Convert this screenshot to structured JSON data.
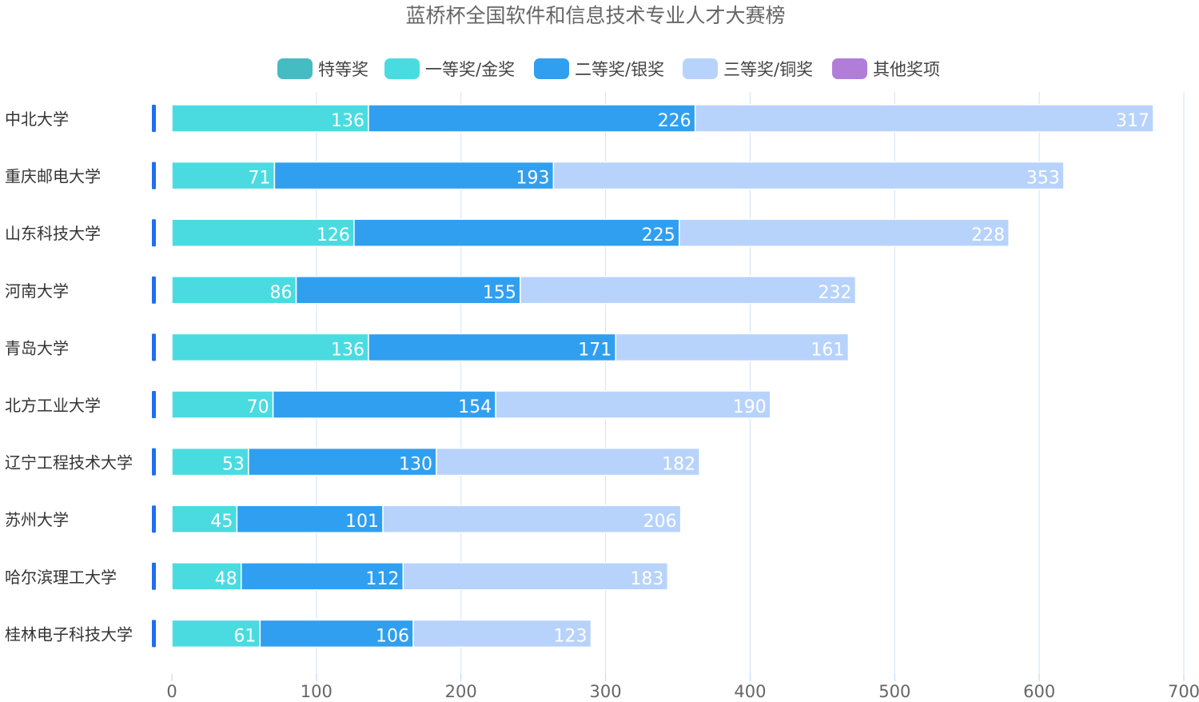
{
  "chart_data": {
    "type": "bar",
    "orientation": "horizontal",
    "stacked": true,
    "title": "蓝桥杯全国软件和信息技术专业人才大赛榜",
    "categories": [
      "中北大学",
      "重庆邮电大学",
      "山东科技大学",
      "河南大学",
      "青岛大学",
      "北方工业大学",
      "辽宁工程技术大学",
      "苏州大学",
      "哈尔滨理工大学",
      "桂林电子科技大学"
    ],
    "series": [
      {
        "name": "特等奖",
        "color": "#45bcc2",
        "values": [
          0,
          0,
          0,
          0,
          0,
          0,
          0,
          0,
          0,
          0
        ]
      },
      {
        "name": "一等奖/金奖",
        "color": "#4adbe1",
        "values": [
          136,
          71,
          126,
          86,
          136,
          70,
          53,
          45,
          48,
          61
        ]
      },
      {
        "name": "二等奖/银奖",
        "color": "#319ff0",
        "values": [
          226,
          193,
          225,
          155,
          171,
          154,
          130,
          101,
          112,
          106
        ]
      },
      {
        "name": "三等奖/铜奖",
        "color": "#b8d3fb",
        "values": [
          317,
          353,
          228,
          232,
          161,
          190,
          182,
          206,
          183,
          123
        ]
      },
      {
        "name": "其他奖项",
        "color": "#b07ed9",
        "values": [
          0,
          0,
          0,
          0,
          0,
          0,
          0,
          0,
          0,
          0
        ]
      }
    ],
    "xlim": [
      0,
      700
    ],
    "xticks": [
      "0",
      "100",
      "200",
      "300",
      "400",
      "500",
      "600",
      "700"
    ],
    "xtick_values": [
      0,
      100,
      200,
      300,
      400,
      500,
      600,
      700
    ],
    "grid": true,
    "legend_position": "top-center",
    "category_marker_color": "#1f6ff0"
  }
}
